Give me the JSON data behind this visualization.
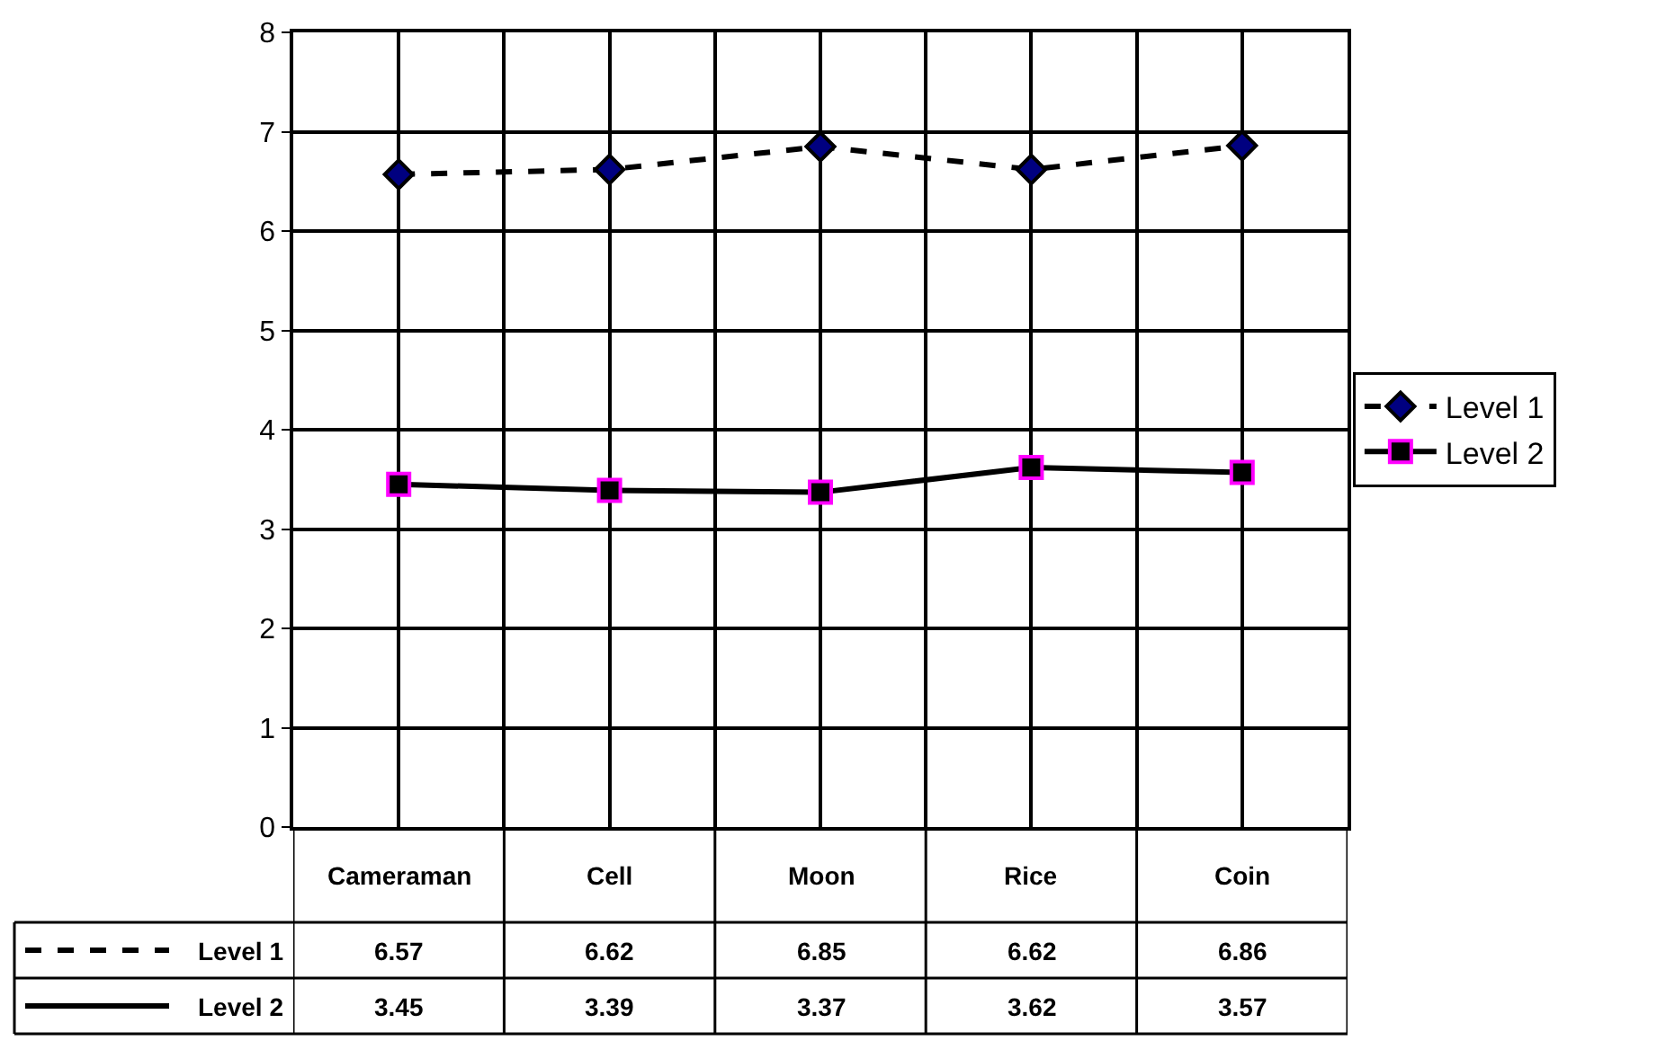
{
  "chart_data": {
    "type": "line",
    "categories": [
      "Cameraman",
      "Cell",
      "Moon",
      "Rice",
      "Coin"
    ],
    "series": [
      {
        "name": "Level 1",
        "color": "#000080",
        "marker": "diamond",
        "line_style": "dashed",
        "values": [
          6.57,
          6.62,
          6.85,
          6.62,
          6.86
        ]
      },
      {
        "name": "Level 2",
        "color": "#ff00ff",
        "marker": "square",
        "line_style": "solid",
        "values": [
          3.45,
          3.39,
          3.37,
          3.62,
          3.57
        ]
      }
    ],
    "ylim": [
      0,
      8
    ],
    "yticks": [
      0,
      1,
      2,
      3,
      4,
      5,
      6,
      7,
      8
    ],
    "grid": true,
    "legend": "right",
    "data_labels": true
  }
}
